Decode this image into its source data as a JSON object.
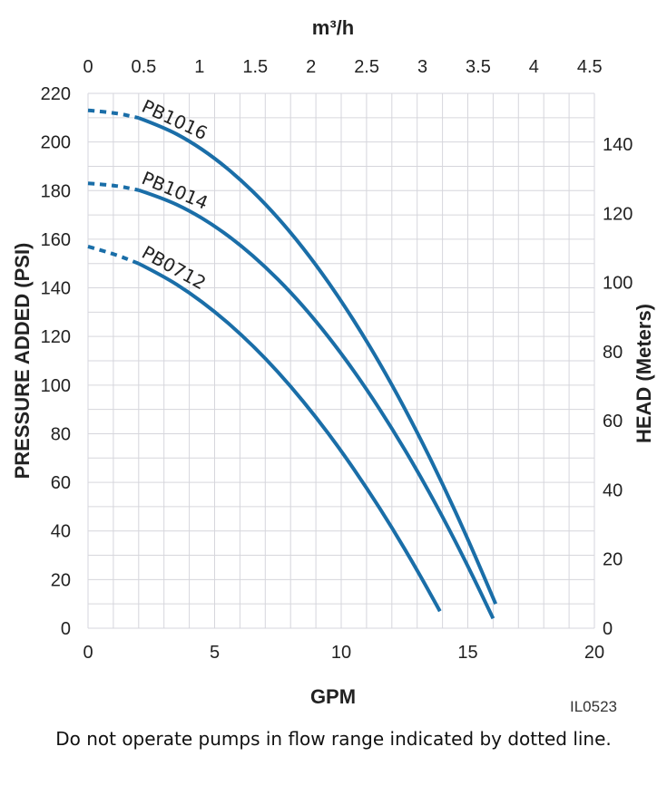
{
  "chart_data": {
    "type": "line",
    "xlabel": "GPM",
    "ylabel": "PRESSURE ADDED (PSI)",
    "y2label": "HEAD (Meters)",
    "x2label": "m³/h",
    "xlim": [
      0,
      20
    ],
    "ylim": [
      0,
      220
    ],
    "y2lim_meters": [
      0,
      154.7
    ],
    "x2lim_m3h": [
      0,
      4.54
    ],
    "x_ticks": [
      "0",
      "5",
      "10",
      "15",
      "20"
    ],
    "y_ticks": [
      "0",
      "20",
      "40",
      "60",
      "80",
      "100",
      "120",
      "140",
      "160",
      "180",
      "200",
      "220"
    ],
    "y2_ticks": [
      "0",
      "20",
      "40",
      "60",
      "80",
      "100",
      "120",
      "140"
    ],
    "x2_ticks": [
      "0",
      "0.5",
      "1",
      "1.5",
      "2",
      "2.5",
      "3",
      "3.5",
      "4",
      "4.5"
    ],
    "grid": true,
    "dotted_until_gpm": 2,
    "series": [
      {
        "name": "PB1016",
        "x": [
          0,
          1,
          2,
          3,
          4,
          5,
          6,
          7,
          8,
          9,
          10,
          11,
          12,
          13,
          14,
          15,
          16.1
        ],
        "y": [
          213,
          212.2,
          209.9,
          206,
          200.5,
          193.4,
          184.8,
          174.6,
          162.9,
          149.6,
          134.7,
          118.3,
          100.3,
          80.7,
          59.5,
          36.8,
          10
        ]
      },
      {
        "name": "PB1014",
        "x": [
          0,
          1,
          2,
          3,
          4,
          5,
          6,
          7,
          8,
          9,
          10,
          11,
          12,
          13,
          14,
          15,
          16
        ],
        "y": [
          183,
          182.3,
          180.2,
          176.7,
          171.8,
          165.5,
          157.8,
          148.7,
          138.3,
          126.4,
          113.1,
          98.4,
          82.3,
          64.9,
          46,
          25.7,
          4
        ]
      },
      {
        "name": "PB0712",
        "x": [
          0,
          1,
          2,
          3,
          4,
          5,
          6,
          7,
          8,
          9,
          10,
          11,
          12,
          13,
          13.9
        ],
        "y": [
          157,
          154.1,
          150,
          144.7,
          138.1,
          130.3,
          121.3,
          111.1,
          99.6,
          86.9,
          73,
          57.8,
          41.5,
          23.9,
          7
        ]
      }
    ],
    "color": "#1a6ea8"
  },
  "code": "IL0523",
  "note": "Do not operate pumps in flow range indicated by dotted line."
}
